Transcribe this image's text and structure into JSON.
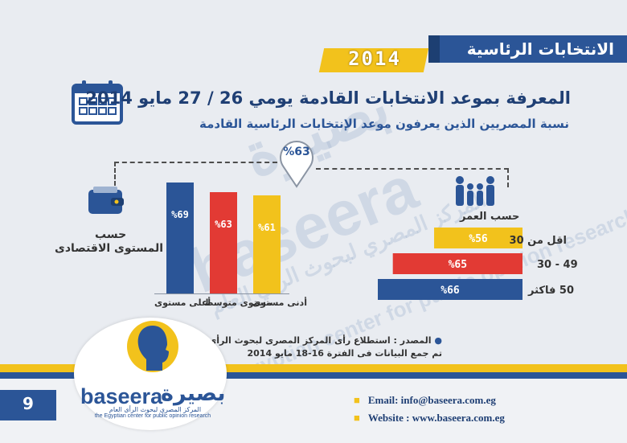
{
  "header": {
    "title": "الانتخابات الرئاسية",
    "year": "2014"
  },
  "headline": "المعرفة بموعد الانتخابات القادمة يومي 26 / 27 مايو 2014",
  "subheadline": "نسبة المصريين الذين يعرفون موعد الإنتخابات الرئاسية القادمة",
  "overall_value": "%63",
  "watermark": {
    "ar": "بصيرة",
    "en": "baseera",
    "line_ar": "المركز المصري لبحوث الرأي العام",
    "line_en": "the Egyptian center for public opinion research"
  },
  "chart_data": [
    {
      "type": "bar",
      "title": "حسب المستوى الاقتصادى",
      "title_line1": "حسب",
      "title_line2": "المستوى الاقتصادى",
      "categories": [
        "أعلى مستوى",
        "مستوى متوسط",
        "أدنى مستوى"
      ],
      "values": [
        69,
        63,
        61
      ],
      "value_labels": [
        "%69",
        "%63",
        "%61"
      ],
      "colors": [
        "#2b5597",
        "#e23a34",
        "#f2c21c"
      ],
      "ylim": [
        0,
        100
      ]
    },
    {
      "type": "bar",
      "orientation": "horizontal",
      "title": "حسب العمر",
      "categories": [
        "اقل من 30",
        "30 - 49",
        "50 فاكثر"
      ],
      "values": [
        56,
        65,
        66
      ],
      "value_labels": [
        "%56",
        "%65",
        "%66"
      ],
      "colors": [
        "#f2c21c",
        "#e23a34",
        "#2b5597"
      ],
      "xlim": [
        0,
        100
      ]
    }
  ],
  "source": {
    "line1": "المصدر : استطلاع رأى المركز المصرى لبحوث الرأى العام (بصيرة)",
    "line2": "تم جمع البيانات فى الفترة 16-18 مايو 2014"
  },
  "footer": {
    "page_number": "9",
    "email": "Email: info@baseera.com.eg",
    "website": "Website : www.baseera.com.eg",
    "logo_en": "baseera",
    "logo_ar": "بصيرة",
    "logo_tagline_ar": "المركز المصرى لبحوث الرأى العام",
    "logo_tagline_en": "the Egyptian center for public opinion research"
  },
  "colors": {
    "blue": "#2b5597",
    "red": "#e23a34",
    "yellow": "#f2c21c",
    "background": "#e9ecf1"
  }
}
